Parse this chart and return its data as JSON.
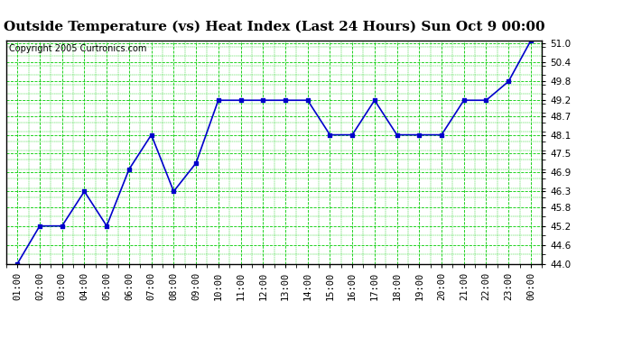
{
  "title": "Outside Temperature (vs) Heat Index (Last 24 Hours) Sun Oct 9 00:00",
  "copyright": "Copyright 2005 Curtronics.com",
  "x_labels": [
    "01:00",
    "02:00",
    "03:00",
    "04:00",
    "05:00",
    "06:00",
    "07:00",
    "08:00",
    "09:00",
    "10:00",
    "11:00",
    "12:00",
    "13:00",
    "14:00",
    "15:00",
    "16:00",
    "17:00",
    "18:00",
    "19:00",
    "20:00",
    "21:00",
    "22:00",
    "23:00",
    "00:00"
  ],
  "y_values": [
    44.0,
    45.2,
    45.2,
    46.3,
    45.2,
    47.0,
    48.1,
    46.3,
    47.2,
    49.2,
    49.2,
    49.2,
    49.2,
    49.2,
    48.1,
    48.1,
    49.2,
    48.1,
    48.1,
    48.1,
    49.2,
    49.2,
    49.8,
    51.1
  ],
  "ylim_min": 44.0,
  "ylim_max": 51.0,
  "y_ticks": [
    44.0,
    44.6,
    45.2,
    45.8,
    46.3,
    46.9,
    47.5,
    48.1,
    48.7,
    49.2,
    49.8,
    50.4,
    51.0
  ],
  "line_color": "#0000cc",
  "marker": "s",
  "marker_size": 2.5,
  "bg_color": "#ffffff",
  "plot_bg_color": "#ffffff",
  "grid_color": "#00cc00",
  "title_fontsize": 11,
  "copyright_fontsize": 7,
  "tick_fontsize": 7.5,
  "title_color": "#000000",
  "axis_label_color": "#000000"
}
